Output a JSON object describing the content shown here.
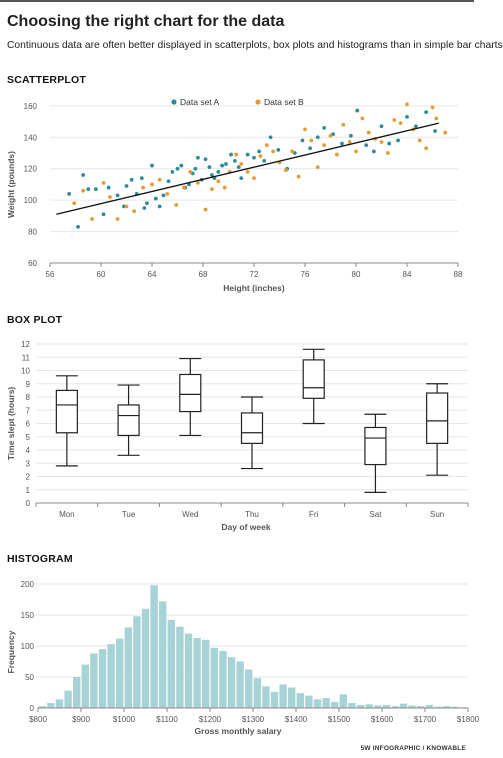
{
  "page": {
    "title": "Choosing the right chart for the data",
    "subtitle": "Continuous data are often better displayed in scatterplots, box plots and histograms than in simple bar charts",
    "credit": "5W INFOGRAPHIC / KNOWABLE"
  },
  "colors": {
    "set_a": "#2e8b99",
    "set_b": "#e39b35",
    "trend": "#111111",
    "histogram": "#a8d3d6",
    "axis": "#888888",
    "grid": "#e6e6e6"
  },
  "chart_data": [
    {
      "type": "scatter",
      "section": "SCATTERPLOT",
      "xlabel": "Height (inches)",
      "ylabel": "Weight (pounds)",
      "xlim": [
        56,
        88
      ],
      "ylim": [
        60,
        165
      ],
      "xticks": [
        56,
        60,
        64,
        68,
        72,
        76,
        80,
        84,
        88
      ],
      "yticks": [
        60,
        80,
        100,
        120,
        140,
        160
      ],
      "legend_position": "top-center",
      "trendline": [
        [
          56.5,
          91
        ],
        [
          86.5,
          149
        ]
      ],
      "series": [
        {
          "name": "Data set A",
          "points": [
            [
              57.5,
              104
            ],
            [
              58.2,
              83
            ],
            [
              58.6,
              116
            ],
            [
              59,
              107
            ],
            [
              59.6,
              107
            ],
            [
              60.2,
              91
            ],
            [
              60.6,
              108
            ],
            [
              61.3,
              103
            ],
            [
              61.8,
              96
            ],
            [
              62,
              109
            ],
            [
              62.4,
              113
            ],
            [
              62.8,
              104
            ],
            [
              63.2,
              114
            ],
            [
              63.4,
              95
            ],
            [
              63.6,
              98
            ],
            [
              64,
              122
            ],
            [
              64.3,
              101
            ],
            [
              64.6,
              96
            ],
            [
              64.9,
              103
            ],
            [
              65.3,
              112
            ],
            [
              65.6,
              118
            ],
            [
              66,
              120
            ],
            [
              66.3,
              122
            ],
            [
              66.6,
              108
            ],
            [
              66.9,
              110
            ],
            [
              67.2,
              117
            ],
            [
              67.4,
              120
            ],
            [
              67.6,
              127
            ],
            [
              67.9,
              113
            ],
            [
              68.2,
              126
            ],
            [
              68.5,
              121
            ],
            [
              68.7,
              116
            ],
            [
              68.9,
              114
            ],
            [
              69.2,
              118
            ],
            [
              69.5,
              122
            ],
            [
              69.8,
              123
            ],
            [
              70.2,
              129
            ],
            [
              70.5,
              125
            ],
            [
              70.8,
              121
            ],
            [
              71,
              114
            ],
            [
              71.5,
              129
            ],
            [
              72,
              127
            ],
            [
              72.4,
              131
            ],
            [
              72.8,
              125
            ],
            [
              73.3,
              140
            ],
            [
              73.9,
              132
            ],
            [
              74.6,
              120
            ],
            [
              75.2,
              130
            ],
            [
              75.8,
              138
            ],
            [
              76.4,
              133
            ],
            [
              77,
              140
            ],
            [
              77.5,
              146
            ],
            [
              78.2,
              142
            ],
            [
              78.9,
              136
            ],
            [
              79.6,
              141
            ],
            [
              80.1,
              157
            ],
            [
              80.8,
              135
            ],
            [
              81.4,
              131
            ],
            [
              82,
              147
            ],
            [
              82.6,
              136
            ],
            [
              83.3,
              138
            ],
            [
              84,
              153
            ],
            [
              84.7,
              147
            ],
            [
              85.5,
              156
            ],
            [
              86.2,
              144
            ]
          ]
        },
        {
          "name": "Data set B",
          "points": [
            [
              57.9,
              98
            ],
            [
              58.6,
              106
            ],
            [
              59.3,
              88
            ],
            [
              60.2,
              111
            ],
            [
              60.7,
              102
            ],
            [
              61.3,
              88
            ],
            [
              62,
              96
            ],
            [
              62.6,
              93
            ],
            [
              63.3,
              108
            ],
            [
              64,
              110
            ],
            [
              64.6,
              113
            ],
            [
              65.2,
              104
            ],
            [
              65.9,
              97
            ],
            [
              66.5,
              108
            ],
            [
              67,
              118
            ],
            [
              67.6,
              111
            ],
            [
              68.2,
              94
            ],
            [
              68.7,
              107
            ],
            [
              69.2,
              112
            ],
            [
              69.7,
              108
            ],
            [
              70.1,
              118
            ],
            [
              70.6,
              129
            ],
            [
              71,
              123
            ],
            [
              71.5,
              118
            ],
            [
              72,
              114
            ],
            [
              72.5,
              128
            ],
            [
              73,
              135
            ],
            [
              73.5,
              131
            ],
            [
              74,
              124
            ],
            [
              74.5,
              119
            ],
            [
              75,
              131
            ],
            [
              75.5,
              115
            ],
            [
              76,
              145
            ],
            [
              76.5,
              138
            ],
            [
              77,
              121
            ],
            [
              77.5,
              135
            ],
            [
              78,
              141
            ],
            [
              78.5,
              129
            ],
            [
              79,
              148
            ],
            [
              79.5,
              137
            ],
            [
              80,
              131
            ],
            [
              80.5,
              152
            ],
            [
              81,
              143
            ],
            [
              81.5,
              139
            ],
            [
              82,
              137
            ],
            [
              82.5,
              130
            ],
            [
              83,
              151
            ],
            [
              83.5,
              149
            ],
            [
              84,
              161
            ],
            [
              84.5,
              145
            ],
            [
              85,
              138
            ],
            [
              85.5,
              133
            ],
            [
              86,
              159
            ],
            [
              86.3,
              152
            ],
            [
              87,
              143
            ]
          ]
        }
      ]
    },
    {
      "type": "box",
      "section": "BOX PLOT",
      "xlabel": "Day of week",
      "ylabel": "Time slept (hours)",
      "ylim": [
        0,
        12
      ],
      "yticks": [
        0,
        1,
        2,
        3,
        4,
        5,
        6,
        7,
        8,
        9,
        10,
        11,
        12
      ],
      "categories": [
        "Mon",
        "Tue",
        "Wed",
        "Thu",
        "Fri",
        "Sat",
        "Sun"
      ],
      "boxes": [
        {
          "min": 2.8,
          "q1": 5.3,
          "median": 7.4,
          "q3": 8.5,
          "max": 9.6
        },
        {
          "min": 3.6,
          "q1": 5.1,
          "median": 6.6,
          "q3": 7.4,
          "max": 8.9
        },
        {
          "min": 5.1,
          "q1": 6.9,
          "median": 8.2,
          "q3": 9.7,
          "max": 10.9
        },
        {
          "min": 2.6,
          "q1": 4.5,
          "median": 5.3,
          "q3": 6.8,
          "max": 8.0
        },
        {
          "min": 6.0,
          "q1": 7.9,
          "median": 8.7,
          "q3": 10.8,
          "max": 11.6
        },
        {
          "min": 0.8,
          "q1": 2.9,
          "median": 4.9,
          "q3": 5.7,
          "max": 6.7
        },
        {
          "min": 2.1,
          "q1": 4.5,
          "median": 6.2,
          "q3": 8.3,
          "max": 9.0
        }
      ]
    },
    {
      "type": "bar",
      "section": "HISTOGRAM",
      "xlabel": "Gross monthly salary",
      "ylabel": "Frequency",
      "ylim": [
        0,
        200
      ],
      "yticks": [
        0,
        50,
        100,
        150,
        200
      ],
      "xlim": [
        800,
        1800
      ],
      "bin_width": 20,
      "bin_start": 800,
      "xtick_labels": [
        "$800",
        "$900",
        "$1000",
        "$1100",
        "$1200",
        "$1300",
        "$1400",
        "$1500",
        "$1600",
        "$1700",
        "$1800"
      ],
      "values": [
        3,
        8,
        14,
        28,
        50,
        70,
        88,
        95,
        103,
        112,
        130,
        148,
        160,
        198,
        172,
        142,
        131,
        120,
        113,
        110,
        97,
        92,
        82,
        75,
        62,
        48,
        35,
        26,
        38,
        33,
        24,
        20,
        14,
        16,
        10,
        22,
        8,
        5,
        6,
        4,
        5,
        3,
        7,
        4,
        3,
        5,
        2,
        3,
        2,
        1
      ]
    }
  ]
}
